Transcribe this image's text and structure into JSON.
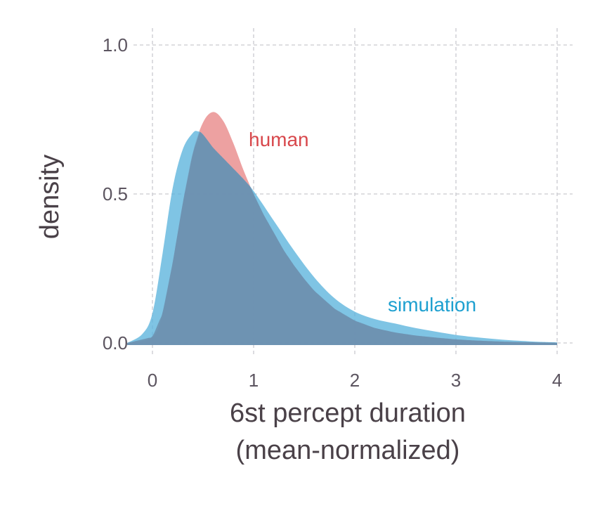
{
  "chart_data": {
    "type": "area",
    "title": "",
    "xlabel": "6st percept duration",
    "xlabel_line2": "(mean-normalized)",
    "ylabel": "density",
    "xlim": [
      -0.25,
      4.15
    ],
    "ylim": [
      0.0,
      1.0
    ],
    "x_ticks": [
      0,
      1,
      2,
      3,
      4
    ],
    "x_tick_labels": [
      "0",
      "1",
      "2",
      "3",
      "4"
    ],
    "y_ticks": [
      0.0,
      0.5,
      1.0
    ],
    "y_tick_labels": [
      "0.0",
      "0.5",
      "1.0"
    ],
    "grid": true,
    "legend": "direct labels on curves",
    "series": [
      {
        "name": "human",
        "color": "#e8898a",
        "label_color": "#d8484c",
        "x": [
          -0.25,
          0.0,
          0.1,
          0.2,
          0.3,
          0.4,
          0.5,
          0.6,
          0.7,
          0.8,
          0.9,
          1.0,
          1.1,
          1.2,
          1.3,
          1.4,
          1.5,
          1.6,
          1.8,
          2.0,
          2.2,
          2.4,
          2.6,
          2.8,
          3.0,
          3.2,
          3.5,
          3.8,
          4.0
        ],
        "y": [
          0.0,
          0.02,
          0.1,
          0.27,
          0.47,
          0.64,
          0.74,
          0.775,
          0.745,
          0.67,
          0.58,
          0.5,
          0.43,
          0.37,
          0.31,
          0.26,
          0.215,
          0.175,
          0.115,
          0.075,
          0.05,
          0.035,
          0.025,
          0.018,
          0.012,
          0.008,
          0.004,
          0.002,
          0.001
        ]
      },
      {
        "name": "simulation",
        "color": "#5bb3dc",
        "label_color": "#1ea0d0",
        "x": [
          -0.25,
          -0.1,
          0.0,
          0.1,
          0.2,
          0.3,
          0.4,
          0.45,
          0.5,
          0.6,
          0.7,
          0.8,
          0.9,
          1.0,
          1.2,
          1.4,
          1.6,
          1.8,
          2.0,
          2.2,
          2.4,
          2.6,
          2.8,
          3.0,
          3.2,
          3.5,
          3.8,
          4.0
        ],
        "y": [
          0.0,
          0.03,
          0.1,
          0.3,
          0.52,
          0.65,
          0.705,
          0.71,
          0.7,
          0.655,
          0.62,
          0.585,
          0.55,
          0.51,
          0.41,
          0.31,
          0.22,
          0.15,
          0.105,
          0.08,
          0.065,
          0.05,
          0.038,
          0.027,
          0.019,
          0.01,
          0.004,
          0.002
        ]
      }
    ],
    "annotations": [
      {
        "text": "human",
        "series": "human"
      },
      {
        "text": "simulation",
        "series": "simulation"
      }
    ]
  }
}
